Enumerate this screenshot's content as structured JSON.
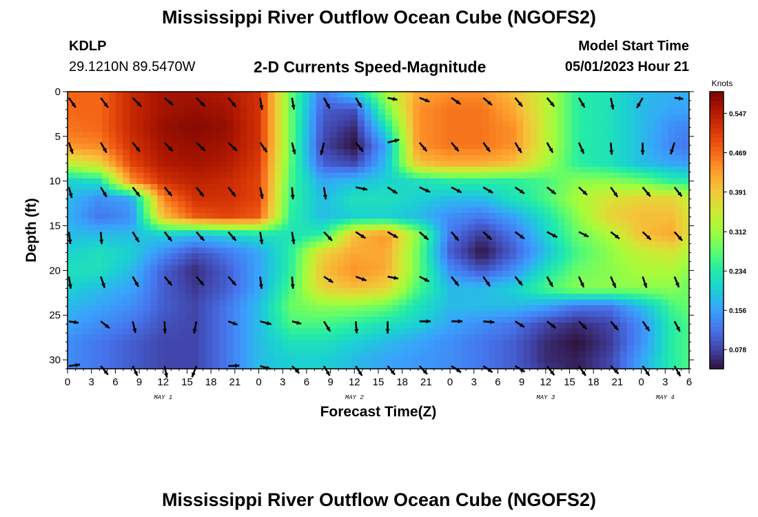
{
  "header": {
    "title": "Mississippi River Outflow Ocean Cube (NGOFS2)",
    "station": "KDLP",
    "coords": "29.1210N  89.5470W",
    "subtitle": "2-D Currents Speed-Magnitude",
    "model_label": "Model Start Time",
    "model_time": "05/01/2023 Hour 21"
  },
  "footer": {
    "title": "Mississippi River Outflow Ocean Cube (NGOFS2)"
  },
  "colors": {
    "arrow": "#000000",
    "colormap": [
      "#30123b",
      "#4145ab",
      "#4675ed",
      "#39a2fc",
      "#1bcfd4",
      "#24eca6",
      "#61fc6c",
      "#a4fc3b",
      "#d1e834",
      "#f3c63a",
      "#fe9b2d",
      "#f36315",
      "#d93806",
      "#b11901",
      "#7a0402"
    ]
  },
  "chart_data": {
    "type": "heatmap",
    "xlabel": "Forecast Time(Z)",
    "ylabel": "Depth (ft)",
    "xlim": [
      0,
      78
    ],
    "ylim": [
      31,
      0
    ],
    "x_ticks": [
      0,
      3,
      6,
      9,
      12,
      15,
      18,
      21,
      24,
      27,
      30,
      33,
      36,
      39,
      42,
      45,
      48,
      51,
      54,
      57,
      60,
      63,
      66,
      69,
      72,
      75,
      78
    ],
    "x_tick_labels": [
      "0",
      "3",
      "6",
      "9",
      "12",
      "15",
      "18",
      "21",
      "0",
      "3",
      "6",
      "9",
      "12",
      "15",
      "18",
      "21",
      "0",
      "3",
      "6",
      "9",
      "12",
      "15",
      "18",
      "21",
      "0",
      "3",
      "6"
    ],
    "date_labels": [
      {
        "text": "MAY 1",
        "x": 12
      },
      {
        "text": "MAY 2",
        "x": 36
      },
      {
        "text": "MAY 3",
        "x": 60
      },
      {
        "text": "MAY 4",
        "x": 75
      }
    ],
    "y_ticks": [
      0,
      5,
      10,
      15,
      20,
      25,
      30
    ],
    "colorbar": {
      "label": "Knots",
      "min": 0.04,
      "max": 0.59,
      "ticks": [
        0.547,
        0.469,
        0.391,
        0.312,
        0.234,
        0.156,
        0.078
      ],
      "tick_labels": [
        "0.547",
        "0.469",
        "0.391",
        "0.312",
        "0.234",
        "0.156",
        "0.078"
      ]
    },
    "grid_times": [
      0,
      4,
      8,
      12,
      16,
      20,
      24,
      28,
      32,
      36,
      40,
      44,
      48,
      52,
      56,
      60,
      64,
      68,
      72,
      76,
      78
    ],
    "grid_depths": [
      0,
      2,
      4,
      6,
      8,
      10,
      12,
      14,
      16,
      18,
      20,
      22,
      24,
      26,
      28,
      30,
      31
    ],
    "speed_field": [
      [
        0.47,
        0.47,
        0.53,
        0.56,
        0.56,
        0.55,
        0.52,
        0.28,
        0.12,
        0.2,
        0.32,
        0.42,
        0.44,
        0.44,
        0.4,
        0.34,
        0.24,
        0.22,
        0.18,
        0.17,
        0.17
      ],
      [
        0.47,
        0.47,
        0.53,
        0.56,
        0.57,
        0.56,
        0.52,
        0.28,
        0.1,
        0.09,
        0.28,
        0.44,
        0.46,
        0.46,
        0.42,
        0.34,
        0.24,
        0.22,
        0.18,
        0.16,
        0.16
      ],
      [
        0.46,
        0.47,
        0.53,
        0.57,
        0.58,
        0.57,
        0.52,
        0.28,
        0.09,
        0.06,
        0.22,
        0.44,
        0.46,
        0.46,
        0.44,
        0.34,
        0.24,
        0.22,
        0.18,
        0.14,
        0.13
      ],
      [
        0.44,
        0.45,
        0.52,
        0.56,
        0.57,
        0.56,
        0.52,
        0.28,
        0.08,
        0.04,
        0.16,
        0.44,
        0.46,
        0.46,
        0.44,
        0.34,
        0.24,
        0.22,
        0.18,
        0.13,
        0.12
      ],
      [
        0.34,
        0.38,
        0.5,
        0.55,
        0.56,
        0.55,
        0.51,
        0.27,
        0.1,
        0.08,
        0.18,
        0.4,
        0.42,
        0.42,
        0.4,
        0.32,
        0.24,
        0.22,
        0.18,
        0.16,
        0.15
      ],
      [
        0.2,
        0.22,
        0.44,
        0.52,
        0.54,
        0.53,
        0.5,
        0.26,
        0.16,
        0.18,
        0.2,
        0.22,
        0.24,
        0.24,
        0.24,
        0.26,
        0.3,
        0.3,
        0.28,
        0.24,
        0.24
      ],
      [
        0.18,
        0.14,
        0.16,
        0.45,
        0.52,
        0.52,
        0.5,
        0.25,
        0.18,
        0.22,
        0.22,
        0.2,
        0.18,
        0.18,
        0.22,
        0.26,
        0.32,
        0.36,
        0.38,
        0.38,
        0.34
      ],
      [
        0.17,
        0.12,
        0.14,
        0.4,
        0.48,
        0.5,
        0.48,
        0.24,
        0.18,
        0.2,
        0.2,
        0.18,
        0.14,
        0.12,
        0.16,
        0.22,
        0.3,
        0.38,
        0.4,
        0.4,
        0.36
      ],
      [
        0.18,
        0.18,
        0.18,
        0.2,
        0.18,
        0.2,
        0.22,
        0.22,
        0.24,
        0.4,
        0.44,
        0.3,
        0.12,
        0.07,
        0.12,
        0.2,
        0.28,
        0.32,
        0.4,
        0.42,
        0.36
      ],
      [
        0.2,
        0.22,
        0.2,
        0.14,
        0.09,
        0.12,
        0.16,
        0.24,
        0.38,
        0.42,
        0.42,
        0.28,
        0.1,
        0.04,
        0.1,
        0.18,
        0.26,
        0.3,
        0.34,
        0.36,
        0.32
      ],
      [
        0.22,
        0.22,
        0.18,
        0.1,
        0.06,
        0.1,
        0.16,
        0.24,
        0.4,
        0.44,
        0.42,
        0.28,
        0.14,
        0.09,
        0.14,
        0.22,
        0.28,
        0.3,
        0.32,
        0.32,
        0.3
      ],
      [
        0.2,
        0.18,
        0.16,
        0.1,
        0.07,
        0.1,
        0.16,
        0.26,
        0.38,
        0.4,
        0.38,
        0.26,
        0.18,
        0.18,
        0.2,
        0.26,
        0.3,
        0.3,
        0.3,
        0.3,
        0.28
      ],
      [
        0.18,
        0.16,
        0.14,
        0.1,
        0.08,
        0.12,
        0.18,
        0.28,
        0.3,
        0.3,
        0.28,
        0.22,
        0.18,
        0.18,
        0.18,
        0.16,
        0.12,
        0.12,
        0.18,
        0.26,
        0.28
      ],
      [
        0.16,
        0.14,
        0.12,
        0.09,
        0.08,
        0.12,
        0.18,
        0.26,
        0.26,
        0.24,
        0.22,
        0.2,
        0.16,
        0.14,
        0.12,
        0.08,
        0.06,
        0.08,
        0.14,
        0.24,
        0.26
      ],
      [
        0.14,
        0.12,
        0.1,
        0.08,
        0.08,
        0.12,
        0.18,
        0.22,
        0.22,
        0.2,
        0.18,
        0.16,
        0.14,
        0.12,
        0.1,
        0.06,
        0.04,
        0.07,
        0.14,
        0.24,
        0.26
      ],
      [
        0.14,
        0.12,
        0.1,
        0.08,
        0.08,
        0.12,
        0.18,
        0.2,
        0.2,
        0.18,
        0.16,
        0.15,
        0.14,
        0.12,
        0.1,
        0.06,
        0.05,
        0.08,
        0.16,
        0.24,
        0.26
      ],
      [
        0.14,
        0.12,
        0.1,
        0.08,
        0.08,
        0.12,
        0.18,
        0.2,
        0.2,
        0.18,
        0.16,
        0.15,
        0.14,
        0.12,
        0.1,
        0.07,
        0.05,
        0.08,
        0.16,
        0.24,
        0.26
      ]
    ],
    "arrow_times": [
      0,
      4,
      8,
      12,
      16,
      20,
      24,
      28,
      32,
      36,
      40,
      44,
      48,
      52,
      56,
      60,
      64,
      68,
      72,
      76
    ],
    "arrow_depths": [
      1,
      6,
      11,
      16,
      21,
      26,
      31
    ],
    "arrow_rows": [
      [
        [
          1.4,
          -2.0
        ],
        [
          1.5,
          -2.0
        ],
        [
          1.8,
          -1.8
        ],
        [
          1.8,
          -1.5
        ],
        [
          1.8,
          -1.8
        ],
        [
          1.6,
          -1.9
        ],
        [
          0.4,
          -2.5
        ],
        [
          0.4,
          -2.4
        ],
        [
          1.2,
          -2.2
        ],
        [
          1.2,
          -2.0
        ],
        [
          2.0,
          -0.4
        ],
        [
          2.1,
          -0.8
        ],
        [
          1.9,
          -1.3
        ],
        [
          1.8,
          -1.5
        ],
        [
          1.5,
          -1.8
        ],
        [
          1.5,
          -1.8
        ],
        [
          1.2,
          -2.0
        ],
        [
          0.5,
          -2.4
        ],
        [
          -1.2,
          -2.1
        ],
        [
          1.8,
          -0.2
        ]
      ],
      [
        [
          0.8,
          -2.3
        ],
        [
          1.2,
          -2.1
        ],
        [
          1.5,
          -1.9
        ],
        [
          1.7,
          -1.8
        ],
        [
          1.8,
          -1.7
        ],
        [
          1.8,
          -1.7
        ],
        [
          1.4,
          -2.0
        ],
        [
          0.6,
          -2.4
        ],
        [
          -0.6,
          -2.6
        ],
        [
          1.5,
          -1.9
        ],
        [
          2.4,
          0.6
        ],
        [
          1.5,
          -1.8
        ],
        [
          1.5,
          -1.8
        ],
        [
          1.4,
          -1.9
        ],
        [
          1.3,
          -2.1
        ],
        [
          1.2,
          -2.1
        ],
        [
          1.0,
          -2.3
        ],
        [
          0.2,
          -2.5
        ],
        [
          0.0,
          -2.5
        ],
        [
          -0.8,
          -2.4
        ]
      ],
      [
        [
          0.6,
          -2.2
        ],
        [
          1.2,
          -2.0
        ],
        [
          1.5,
          -1.9
        ],
        [
          1.5,
          -1.8
        ],
        [
          1.5,
          -1.9
        ],
        [
          1.5,
          -1.9
        ],
        [
          0.5,
          -2.4
        ],
        [
          0.2,
          -2.5
        ],
        [
          0.4,
          -2.5
        ],
        [
          2.4,
          -0.5
        ],
        [
          2.0,
          -1.3
        ],
        [
          2.2,
          -1.0
        ],
        [
          2.1,
          -1.1
        ],
        [
          2.0,
          -1.2
        ],
        [
          1.9,
          -1.3
        ],
        [
          1.8,
          -1.4
        ],
        [
          1.7,
          -1.6
        ],
        [
          1.4,
          -2.0
        ],
        [
          1.6,
          -1.9
        ],
        [
          1.5,
          -1.9
        ]
      ],
      [
        [
          0.3,
          -2.5
        ],
        [
          0.2,
          -2.5
        ],
        [
          1.3,
          -2.1
        ],
        [
          1.5,
          -1.9
        ],
        [
          1.6,
          -1.8
        ],
        [
          1.6,
          -1.8
        ],
        [
          0.4,
          -2.5
        ],
        [
          0.4,
          -2.5
        ],
        [
          1.7,
          -1.8
        ],
        [
          2.0,
          -1.3
        ],
        [
          2.1,
          -1.2
        ],
        [
          1.8,
          -1.6
        ],
        [
          1.5,
          -1.8
        ],
        [
          1.7,
          -1.6
        ],
        [
          1.9,
          -1.4
        ],
        [
          2.1,
          -1.1
        ],
        [
          2.0,
          -1.0
        ],
        [
          1.8,
          -1.4
        ],
        [
          1.7,
          -1.6
        ],
        [
          1.6,
          -1.8
        ]
      ],
      [
        [
          0.4,
          -2.5
        ],
        [
          0.8,
          -2.3
        ],
        [
          1.2,
          -2.1
        ],
        [
          1.5,
          -1.8
        ],
        [
          1.5,
          -1.8
        ],
        [
          1.6,
          -1.8
        ],
        [
          0.3,
          -2.5
        ],
        [
          0.2,
          -2.5
        ],
        [
          1.9,
          -1.2
        ],
        [
          2.2,
          -0.8
        ],
        [
          2.2,
          -0.4
        ],
        [
          2.0,
          -1.0
        ],
        [
          1.5,
          -1.9
        ],
        [
          1.4,
          -2.0
        ],
        [
          1.5,
          -1.8
        ],
        [
          1.2,
          -2.1
        ],
        [
          1.0,
          -2.2
        ],
        [
          1.0,
          -2.3
        ],
        [
          0.8,
          -2.3
        ],
        [
          0.9,
          -2.2
        ]
      ],
      [
        [
          2.0,
          -0.3
        ],
        [
          1.8,
          -1.4
        ],
        [
          0.6,
          -2.4
        ],
        [
          0.1,
          -2.5
        ],
        [
          -0.5,
          -2.5
        ],
        [
          1.9,
          -0.7
        ],
        [
          2.3,
          -0.6
        ],
        [
          1.9,
          -0.5
        ],
        [
          1.3,
          -2.1
        ],
        [
          0.2,
          -2.5
        ],
        [
          0.0,
          -2.5
        ],
        [
          2.3,
          0.0
        ],
        [
          2.3,
          0.0
        ],
        [
          2.3,
          -0.2
        ],
        [
          1.9,
          -1.2
        ],
        [
          1.8,
          -1.4
        ],
        [
          1.6,
          -1.6
        ],
        [
          1.5,
          -1.8
        ],
        [
          1.4,
          -2.0
        ],
        [
          1.1,
          -2.1
        ]
      ],
      [
        [
          2.3,
          0.3
        ],
        [
          1.5,
          -1.8
        ],
        [
          1.0,
          -2.0
        ],
        [
          0.5,
          -2.4
        ],
        [
          -0.9,
          -2.3
        ],
        [
          2.3,
          0.1
        ],
        [
          2.2,
          -0.6
        ],
        [
          1.5,
          -1.5
        ],
        [
          1.2,
          -2.0
        ],
        [
          1.3,
          -2.0
        ],
        [
          1.5,
          -1.8
        ],
        [
          1.6,
          -1.7
        ],
        [
          2.0,
          -1.3
        ],
        [
          1.9,
          -1.3
        ],
        [
          2.0,
          -1.2
        ],
        [
          1.5,
          -1.9
        ],
        [
          1.4,
          -2.0
        ],
        [
          1.6,
          -1.6
        ],
        [
          1.4,
          -2.0
        ],
        [
          1.2,
          -2.1
        ]
      ]
    ]
  }
}
